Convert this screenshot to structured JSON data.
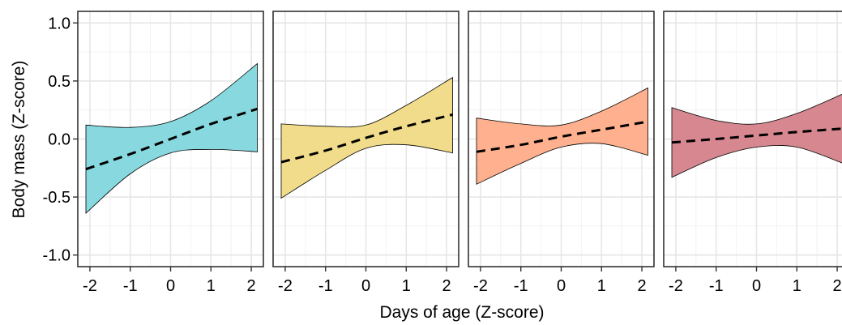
{
  "chart_data": {
    "type": "line",
    "layout": "four-panel small multiples",
    "xlabel": "Days of age (Z-score)",
    "ylabel": "Body mass (Z-score)",
    "ylim": [
      -1.1,
      1.1
    ],
    "xlim": [
      -2.3,
      2.3
    ],
    "y_ticks": [
      -1.0,
      -0.5,
      0.0,
      0.5,
      1.0
    ],
    "y_tick_labels": [
      "-1.0",
      "-0.5",
      "0.0",
      "0.5",
      "1.0"
    ],
    "x_ticks": [
      -2,
      -1,
      0,
      1,
      2
    ],
    "x_tick_labels": [
      "-2",
      "-1",
      "0",
      "1",
      "2"
    ],
    "grid": true,
    "line_style": "dashed",
    "line_color": "#000000",
    "panels": [
      {
        "color": "#87d9df",
        "x": [
          -2.1,
          -1,
          0,
          1,
          2.15
        ],
        "fit": [
          -0.26,
          -0.13,
          0.0,
          0.13,
          0.26
        ],
        "upper": [
          0.12,
          0.1,
          0.15,
          0.33,
          0.65
        ],
        "lower": [
          -0.64,
          -0.3,
          -0.12,
          -0.09,
          -0.11
        ]
      },
      {
        "color": "#f0dc8a",
        "x": [
          -2.1,
          -1,
          0,
          1,
          2.15
        ],
        "fit": [
          -0.2,
          -0.1,
          0.01,
          0.11,
          0.21
        ],
        "upper": [
          0.13,
          0.11,
          0.12,
          0.29,
          0.53
        ],
        "lower": [
          -0.51,
          -0.27,
          -0.08,
          -0.05,
          -0.12
        ]
      },
      {
        "color": "#ffb08f",
        "x": [
          -2.1,
          -1,
          0,
          1,
          2.15
        ],
        "fit": [
          -0.11,
          -0.05,
          0.02,
          0.08,
          0.15
        ],
        "upper": [
          0.18,
          0.13,
          0.12,
          0.24,
          0.44
        ],
        "lower": [
          -0.39,
          -0.21,
          -0.07,
          -0.04,
          -0.14
        ]
      },
      {
        "color": "#d6878f",
        "x": [
          -2.1,
          -1,
          0,
          1,
          2.15
        ],
        "fit": [
          -0.03,
          0.0,
          0.03,
          0.06,
          0.09
        ],
        "upper": [
          0.27,
          0.16,
          0.13,
          0.22,
          0.39
        ],
        "lower": [
          -0.33,
          -0.16,
          -0.07,
          -0.07,
          -0.21
        ]
      }
    ]
  }
}
